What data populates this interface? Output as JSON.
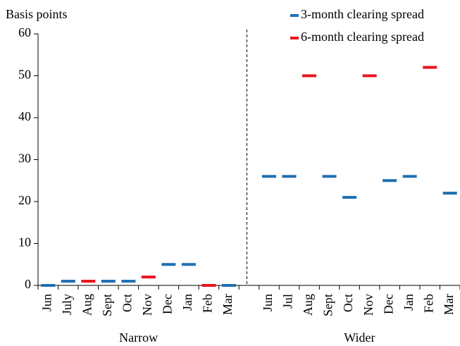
{
  "chart_data": {
    "type": "dash",
    "y_label": "Basis points",
    "categories": [
      "Jun",
      "July",
      "Aug",
      "Sept",
      "Oct",
      "Nov",
      "Dec",
      "Jan",
      "Feb",
      "Mar",
      null,
      "Jun",
      "Jul",
      "Aug",
      "Sept",
      "Oct",
      "Nov",
      "Dec",
      "Jan",
      "Feb",
      "Mar"
    ],
    "groups": [
      "Narrow",
      "Wider"
    ],
    "series": [
      {
        "name": "3-month clearing spread",
        "color": "#1f6fb4",
        "values": [
          0,
          1,
          null,
          1,
          1,
          null,
          5,
          5,
          null,
          0,
          null,
          26,
          26,
          null,
          26,
          21,
          null,
          25,
          26,
          null,
          22
        ]
      },
      {
        "name": "6-month clearing spread",
        "color": "#e8141b",
        "values": [
          null,
          null,
          1,
          null,
          null,
          2,
          null,
          null,
          0,
          null,
          null,
          null,
          null,
          50,
          null,
          null,
          50,
          null,
          null,
          52,
          null
        ]
      }
    ],
    "ylim": [
      0,
      60
    ],
    "yticks": [
      0,
      10,
      20,
      30,
      40,
      50,
      60
    ],
    "legend": "top-right"
  }
}
